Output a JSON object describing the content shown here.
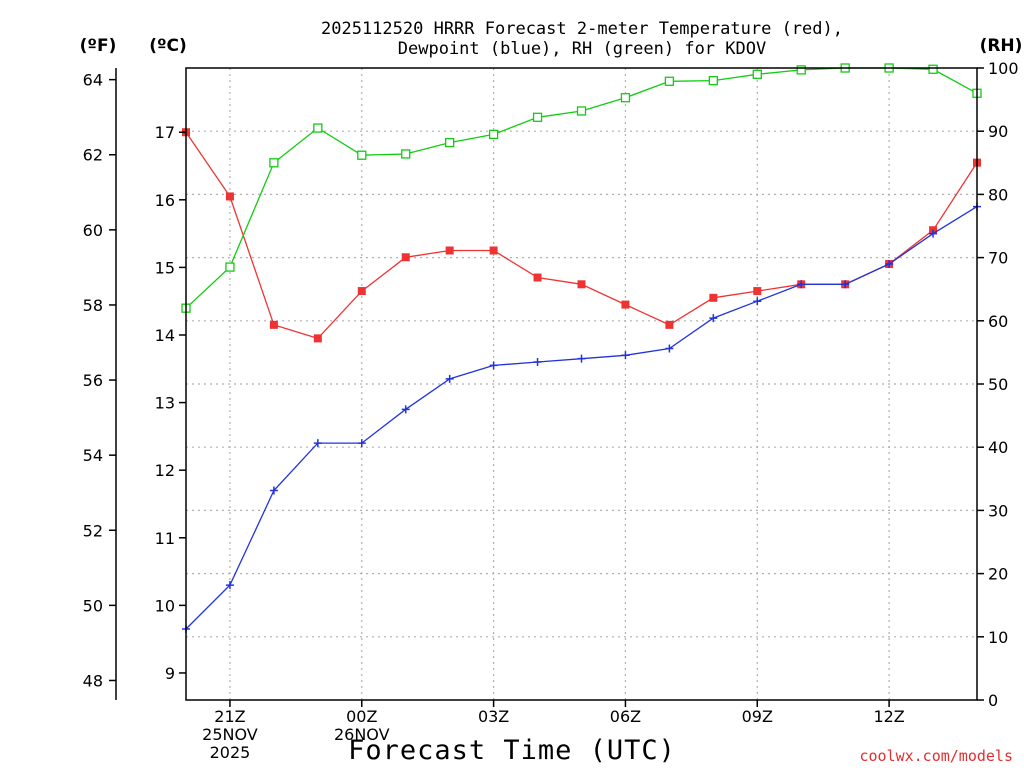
{
  "title_line1": "2025112520 HRRR Forecast 2-meter Temperature (red),",
  "title_line2": "Dewpoint (blue), RH (green) for KDOV",
  "unit_left_f": "(ºF)",
  "unit_left_c": "(ºC)",
  "unit_right_rh": "(RH)",
  "xlabel": "Forecast Time (UTC)",
  "credit": "coolwx.com/models",
  "colors": {
    "temperature": "#ee3333",
    "dewpoint": "#2233dd",
    "rh": "#11cc11",
    "grid": "#b0b0b0",
    "credit": "#e03030"
  },
  "chart_data": {
    "type": "line",
    "grid": true,
    "x": [
      20,
      21,
      22,
      23,
      24,
      25,
      26,
      27,
      28,
      29,
      30,
      31,
      32,
      33,
      34,
      35,
      36,
      37,
      38
    ],
    "x_unit": "hours after 25NOV 00Z",
    "xlim": [
      20,
      38
    ],
    "x_ticks": [
      {
        "x": 21,
        "lines": [
          "21Z",
          "25NOV",
          "2025"
        ]
      },
      {
        "x": 24,
        "lines": [
          "00Z",
          "26NOV"
        ]
      },
      {
        "x": 27,
        "lines": [
          "03Z"
        ]
      },
      {
        "x": 30,
        "lines": [
          "06Z"
        ]
      },
      {
        "x": 33,
        "lines": [
          "09Z"
        ]
      },
      {
        "x": 36,
        "lines": [
          "12Z"
        ]
      }
    ],
    "y_axis_c": {
      "label": "(ºC)",
      "lim": [
        8.6,
        17.95
      ],
      "ticks": [
        9,
        10,
        11,
        12,
        13,
        14,
        15,
        16,
        17
      ]
    },
    "y_axis_f": {
      "label": "(ºF)",
      "ticks": [
        48,
        50,
        52,
        54,
        56,
        58,
        60,
        62,
        64
      ]
    },
    "y_axis_rh": {
      "label": "(RH)",
      "lim": [
        0,
        100
      ],
      "ticks": [
        0,
        10,
        20,
        30,
        40,
        50,
        60,
        70,
        80,
        90,
        100
      ]
    },
    "series": [
      {
        "key": "temperature",
        "axis": "c",
        "marker": "filled-square",
        "values": [
          17.0,
          16.05,
          14.15,
          13.95,
          14.65,
          15.15,
          15.25,
          15.25,
          14.85,
          14.75,
          14.45,
          14.15,
          14.55,
          14.65,
          14.75,
          14.75,
          15.05,
          15.55,
          16.55
        ]
      },
      {
        "key": "dewpoint",
        "axis": "c",
        "marker": "plus",
        "values": [
          9.65,
          10.3,
          11.7,
          12.4,
          12.4,
          12.9,
          13.35,
          13.55,
          13.6,
          13.65,
          13.7,
          13.8,
          14.25,
          14.5,
          14.75,
          14.75,
          15.05,
          15.5,
          15.9
        ]
      },
      {
        "key": "rh",
        "axis": "rh",
        "marker": "open-square",
        "values": [
          62,
          68.5,
          85,
          90.5,
          86.2,
          86.4,
          88.2,
          89.5,
          92.2,
          93.2,
          95.3,
          97.9,
          98,
          99,
          99.7,
          100,
          100,
          99.8,
          96
        ]
      }
    ]
  }
}
